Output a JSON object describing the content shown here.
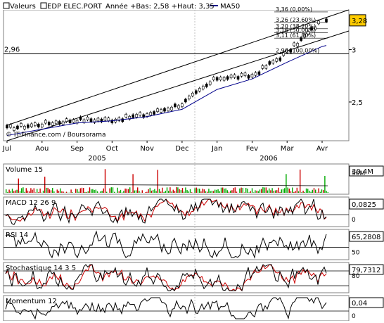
{
  "header": {
    "label": "Valeurs",
    "symbol": "EDP ELEC.PORT",
    "range_text": "Année +Bas: 2,58 +Haut: 3,35",
    "ma_label": "MA50"
  },
  "watermark": "© IT-Finance.com / Boursorama",
  "x_axis": {
    "months": [
      "Jul",
      "Aou",
      "Sep",
      "Oct",
      "Nov",
      "Dec",
      "Jan",
      "Fev",
      "Mar",
      "Avr"
    ],
    "years": [
      "2005",
      "2006"
    ]
  },
  "fib_labels": [
    "3,36 (0,00%)",
    "3,26 (23,60%)",
    "3,20 (38,20%)",
    "3,16 (50,00%)",
    "3,11 (61,80%)",
    "2,96 (100,00%)"
  ],
  "colors": {
    "price": "#000000",
    "ma50": "#00008b",
    "volume_up": "#00aa00",
    "volume_down": "#cc0000",
    "signal": "#cc0000",
    "price_tag": "#ffcc00",
    "panel_border": "#808080",
    "grid": "#c0c0c0"
  },
  "panels": {
    "volume": {
      "title": "Volume 15",
      "tick": "50M",
      "current": "30,4M"
    },
    "macd": {
      "title": "MACD 12 26 9",
      "current": "0,0825",
      "ticks": [
        "0"
      ]
    },
    "rsi": {
      "title": "RSI 14",
      "current": "65,2808",
      "ticks": [
        "50"
      ]
    },
    "stoch": {
      "title": "Stochastique 14 3 5",
      "current": "79,7312",
      "ticks": [
        "80"
      ]
    },
    "momentum": {
      "title": "Momentum 12",
      "current": "0,04",
      "ticks": [
        "0"
      ]
    }
  },
  "chart_data": {
    "type": "line",
    "title": "EDP ELEC.PORT",
    "x": [
      "Jul",
      "Aou",
      "Sep",
      "Oct",
      "Nov",
      "Dec",
      "Jan",
      "Fev",
      "Mar",
      "Avr"
    ],
    "series": [
      {
        "name": "EDP ELEC.PORT",
        "values": [
          2.25,
          2.29,
          2.33,
          2.33,
          2.38,
          2.48,
          2.73,
          2.75,
          2.97,
          3.28
        ]
      },
      {
        "name": "MA50",
        "values": [
          2.18,
          2.24,
          2.3,
          2.32,
          2.36,
          2.43,
          2.62,
          2.72,
          2.88,
          3.03
        ]
      }
    ],
    "y_ticks": [
      "2,5",
      "3"
    ],
    "y_range": [
      2.13,
      3.38
    ],
    "reference_line": {
      "value": 2.96,
      "label": "2,96"
    },
    "current_value": "3,28"
  }
}
